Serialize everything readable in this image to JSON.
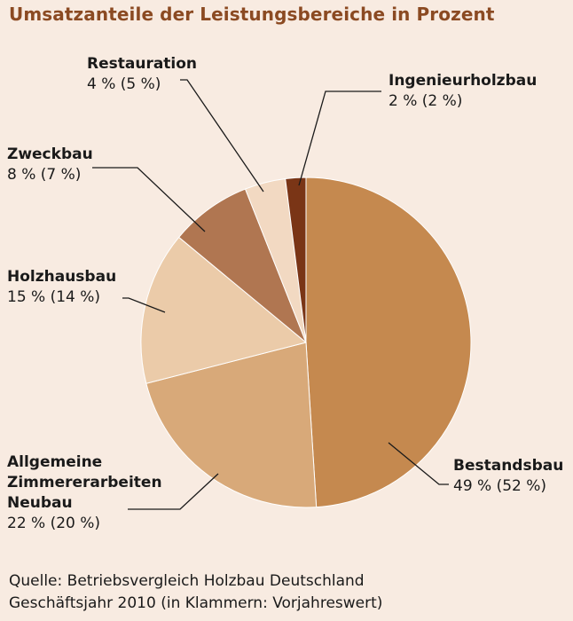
{
  "chart_data": {
    "type": "pie",
    "title": "Umsatzanteile der Leistungsbereiche in Prozent",
    "slices": [
      {
        "label": "Bestandsbau",
        "value": 49,
        "value_text": "49 % (52 %)",
        "previous_year": 52,
        "color": "#c5894f"
      },
      {
        "label": "Allgemeine Zimmererarbeiten Neubau",
        "label_lines": [
          "Allgemeine",
          "Zimmererarbeiten",
          "Neubau"
        ],
        "value": 22,
        "value_text": "22 % (20 %)",
        "previous_year": 20,
        "color": "#d8a979"
      },
      {
        "label": "Holzhausbau",
        "value": 15,
        "value_text": "15 % (14 %)",
        "previous_year": 14,
        "color": "#ebcba9"
      },
      {
        "label": "Zweckbau",
        "value": 8,
        "value_text": "8 % (7 %)",
        "previous_year": 7,
        "color": "#b07651"
      },
      {
        "label": "Restauration",
        "value": 4,
        "value_text": "4 % (5 %)",
        "previous_year": 5,
        "color": "#f2d9c2"
      },
      {
        "label": "Ingenieurholzbau",
        "value": 2,
        "value_text": "2 % (2 %)",
        "previous_year": 2,
        "color": "#7a3516"
      }
    ]
  },
  "footer": {
    "line1": "Quelle: Betriebsvergleich Holzbau Deutschland",
    "line2": "Geschäftsjahr 2010 (in Klammern: Vorjahreswert)"
  },
  "colors": {
    "background": "#f8ebe1",
    "title": "#8b4a22",
    "leader_lines": "#1a1a1a"
  }
}
